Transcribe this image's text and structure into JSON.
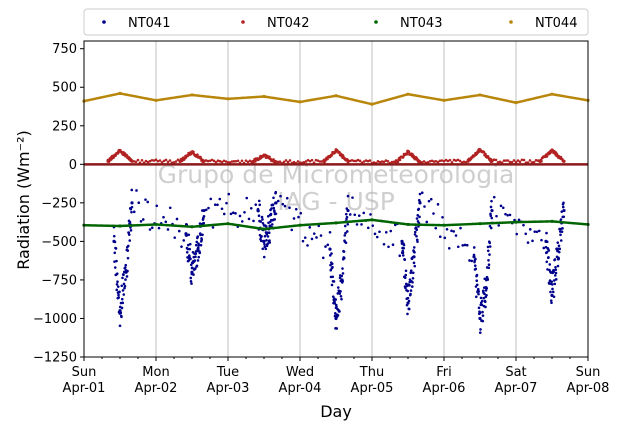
{
  "chart_data": {
    "type": "scatter",
    "xlabel": "Day",
    "ylabel": "Radiation",
    "ylabel_unit": "(Wm⁻²)",
    "ylim": [
      -1250,
      800
    ],
    "yticks": [
      -1250,
      -1000,
      -750,
      -500,
      -250,
      0,
      250,
      500,
      750
    ],
    "xlim": [
      "2018-04-01",
      "2018-04-08"
    ],
    "xticks": [
      {
        "day": "Sun",
        "date": "Apr-01"
      },
      {
        "day": "Mon",
        "date": "Apr-02"
      },
      {
        "day": "Tue",
        "date": "Apr-03"
      },
      {
        "day": "Wed",
        "date": "Apr-04"
      },
      {
        "day": "Thu",
        "date": "Apr-05"
      },
      {
        "day": "Fri",
        "date": "Apr-06"
      },
      {
        "day": "Sat",
        "date": "Apr-07"
      },
      {
        "day": "Sun",
        "date": "Apr-08"
      }
    ],
    "grid": "vertical",
    "legend_position": "top",
    "watermark": [
      "Grupo de Micrometeorologia",
      "IAG - USP"
    ],
    "series": [
      {
        "name": "NT041",
        "color": "#00008b",
        "x": [
          "Apr-01 10:00",
          "Apr-01 12:00",
          "Apr-01 14:00",
          "Apr-01 16:00",
          "Apr-02 10:00",
          "Apr-02 12:00",
          "Apr-02 14:00",
          "Apr-02 16:00",
          "Apr-03 10:00",
          "Apr-03 12:00",
          "Apr-03 14:00",
          "Apr-03 16:00",
          "Apr-04 10:00",
          "Apr-04 12:00",
          "Apr-04 14:00",
          "Apr-04 16:00",
          "Apr-05 10:00",
          "Apr-05 12:00",
          "Apr-05 14:00",
          "Apr-05 16:00",
          "Apr-06 10:00",
          "Apr-06 12:00",
          "Apr-06 14:00",
          "Apr-06 16:00",
          "Apr-07 10:00",
          "Apr-07 12:00",
          "Apr-07 14:00",
          "Apr-07 16:00"
        ],
        "y": [
          -500,
          -950,
          -700,
          -250,
          -450,
          -700,
          -550,
          -300,
          -300,
          -500,
          -400,
          -250,
          -550,
          -1000,
          -750,
          -300,
          -500,
          -900,
          -600,
          -250,
          -600,
          -1000,
          -800,
          -300,
          -500,
          -850,
          -550,
          -300
        ]
      },
      {
        "name": "NT042",
        "color": "#b22222",
        "x": [
          "Apr-01 08:00",
          "Apr-01 12:00",
          "Apr-01 16:00",
          "Apr-02 08:00",
          "Apr-02 12:00",
          "Apr-02 16:00",
          "Apr-03 08:00",
          "Apr-03 12:00",
          "Apr-03 16:00",
          "Apr-04 08:00",
          "Apr-04 12:00",
          "Apr-04 16:00",
          "Apr-05 08:00",
          "Apr-05 12:00",
          "Apr-05 16:00",
          "Apr-06 08:00",
          "Apr-06 12:00",
          "Apr-06 16:00",
          "Apr-07 08:00",
          "Apr-07 12:00",
          "Apr-07 16:00"
        ],
        "y": [
          20,
          90,
          20,
          20,
          80,
          20,
          15,
          60,
          15,
          20,
          90,
          20,
          15,
          80,
          15,
          20,
          95,
          20,
          20,
          90,
          20
        ]
      },
      {
        "name": "NT043",
        "color": "#006400",
        "x": [
          "Apr-01 00:00",
          "Apr-01 12:00",
          "Apr-02 00:00",
          "Apr-02 12:00",
          "Apr-03 00:00",
          "Apr-03 12:00",
          "Apr-04 00:00",
          "Apr-04 12:00",
          "Apr-05 00:00",
          "Apr-05 12:00",
          "Apr-06 00:00",
          "Apr-06 12:00",
          "Apr-07 00:00",
          "Apr-07 12:00",
          "Apr-08 00:00"
        ],
        "y": [
          -395,
          -400,
          -390,
          -405,
          -385,
          -420,
          -395,
          -380,
          -360,
          -390,
          -395,
          -385,
          -375,
          -370,
          -390
        ]
      },
      {
        "name": "NT044",
        "color": "#b8860b",
        "x": [
          "Apr-01 00:00",
          "Apr-01 12:00",
          "Apr-02 00:00",
          "Apr-02 12:00",
          "Apr-03 00:00",
          "Apr-03 12:00",
          "Apr-04 00:00",
          "Apr-04 12:00",
          "Apr-05 00:00",
          "Apr-05 12:00",
          "Apr-06 00:00",
          "Apr-06 12:00",
          "Apr-07 00:00",
          "Apr-07 12:00",
          "Apr-08 00:00"
        ],
        "y": [
          410,
          460,
          415,
          450,
          425,
          440,
          405,
          445,
          390,
          455,
          415,
          450,
          400,
          455,
          415
        ]
      }
    ]
  }
}
